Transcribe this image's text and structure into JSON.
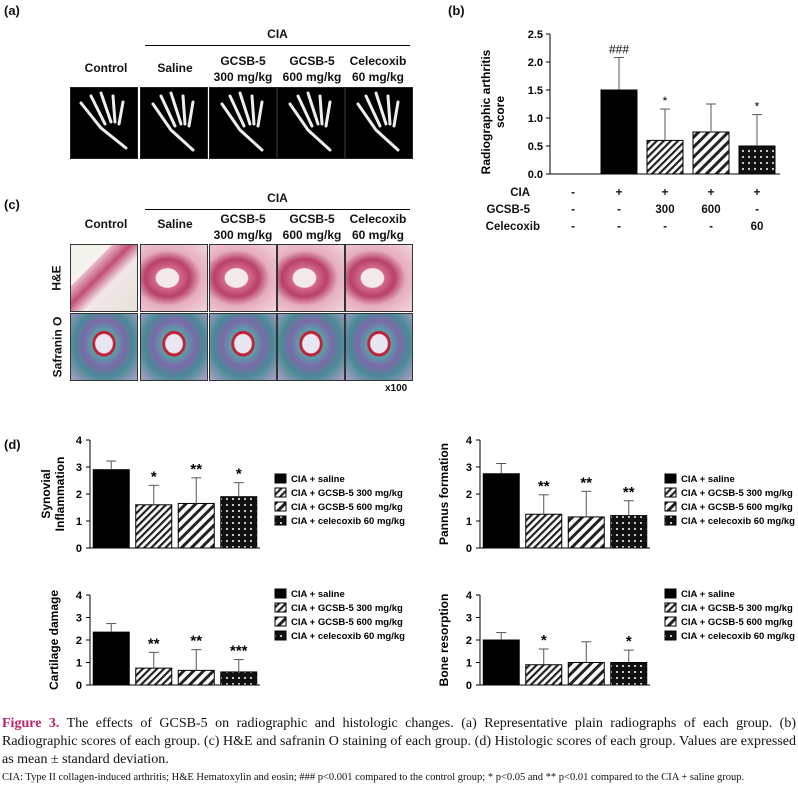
{
  "panels": {
    "a": "(a)",
    "b": "(b)",
    "c": "(c)",
    "d": "(d)"
  },
  "panel_a": {
    "cia": "CIA",
    "groups": [
      "Control",
      "Saline",
      "GCSB-5\n300 mg/kg",
      "GCSB-5\n600 mg/kg",
      "Celecoxib\n60 mg/kg"
    ]
  },
  "panel_c": {
    "cia": "CIA",
    "groups": [
      "Control",
      "Saline",
      "GCSB-5\n300 mg/kg",
      "GCSB-5\n600 mg/kg",
      "Celecoxib\n60 mg/kg"
    ],
    "rows": [
      "H&E",
      "Safranin O"
    ],
    "magnification": "x100"
  },
  "panel_b_table": {
    "rows": [
      {
        "label": "CIA",
        "cells": [
          "-",
          "+",
          "+",
          "+",
          "+"
        ]
      },
      {
        "label": "GCSB-5",
        "cells": [
          "-",
          "-",
          "300",
          "600",
          "-"
        ]
      },
      {
        "label": "Celecoxib",
        "cells": [
          "-",
          "-",
          "-",
          "-",
          "60"
        ]
      }
    ]
  },
  "legend": [
    "CIA + saline",
    "CIA + GCSB-5 300 mg/kg",
    "CIA + GCSB-5 600 mg/kg",
    "CIA + celecoxib 60 mg/kg"
  ],
  "chart_data": [
    {
      "id": "b",
      "type": "bar",
      "ylabel": "Radiographic arthritis\nscore",
      "ylim": [
        0,
        2.5
      ],
      "yticks": [
        "0.0",
        "0.5",
        "1.0",
        "1.5",
        "2.0",
        "2.5"
      ],
      "values": [
        0,
        1.5,
        0.6,
        0.75,
        0.5
      ],
      "errors": [
        0,
        0.58,
        0.56,
        0.5,
        0.56
      ],
      "annotations": [
        "",
        "###",
        "*",
        "",
        "*"
      ]
    },
    {
      "id": "d1",
      "type": "bar",
      "ylabel": "Synovial\nInflammation",
      "ylim": [
        0,
        4
      ],
      "yticks": [
        "0",
        "1",
        "2",
        "3",
        "4"
      ],
      "values": [
        2.9,
        1.6,
        1.65,
        1.9
      ],
      "errors": [
        0.32,
        0.72,
        0.95,
        0.52
      ],
      "annotations": [
        "",
        "*",
        "**",
        "*"
      ]
    },
    {
      "id": "d2",
      "type": "bar",
      "ylabel": "Pannus formation",
      "ylim": [
        0,
        4
      ],
      "yticks": [
        "0",
        "1",
        "2",
        "3",
        "4"
      ],
      "values": [
        2.75,
        1.25,
        1.15,
        1.2
      ],
      "errors": [
        0.38,
        0.72,
        0.95,
        0.55
      ],
      "annotations": [
        "",
        "**",
        "**",
        "**"
      ]
    },
    {
      "id": "d3",
      "type": "bar",
      "ylabel": "Cartilage damage",
      "ylim": [
        0,
        4
      ],
      "yticks": [
        "0",
        "1",
        "2",
        "3",
        "4"
      ],
      "values": [
        2.35,
        0.75,
        0.65,
        0.58
      ],
      "errors": [
        0.38,
        0.7,
        0.92,
        0.55
      ],
      "annotations": [
        "",
        "**",
        "**",
        "***"
      ]
    },
    {
      "id": "d4",
      "type": "bar",
      "ylabel": "Bone resorption",
      "ylim": [
        0,
        4
      ],
      "yticks": [
        "0",
        "1",
        "2",
        "3",
        "4"
      ],
      "values": [
        2.0,
        0.9,
        1.0,
        1.0
      ],
      "errors": [
        0.33,
        0.7,
        0.92,
        0.55
      ],
      "annotations": [
        "",
        "*",
        "",
        "*"
      ]
    }
  ],
  "caption": {
    "fig": "Figure 3.",
    "text": " The effects of GCSB-5 on radiographic and histologic changes. (a) Representative plain radiographs of each group. (b) Radiographic scores of each group. (c) H&E and safranin O staining of each group. (d) Histologic scores of each group. Values are expressed as mean ± standard deviation."
  },
  "footnote": "CIA: Type II collagen-induced arthritis; H&E Hematoxylin and eosin; ### p<0.001 compared to the control group; * p<0.05 and ** p<0.01 compared to the CIA + saline group."
}
